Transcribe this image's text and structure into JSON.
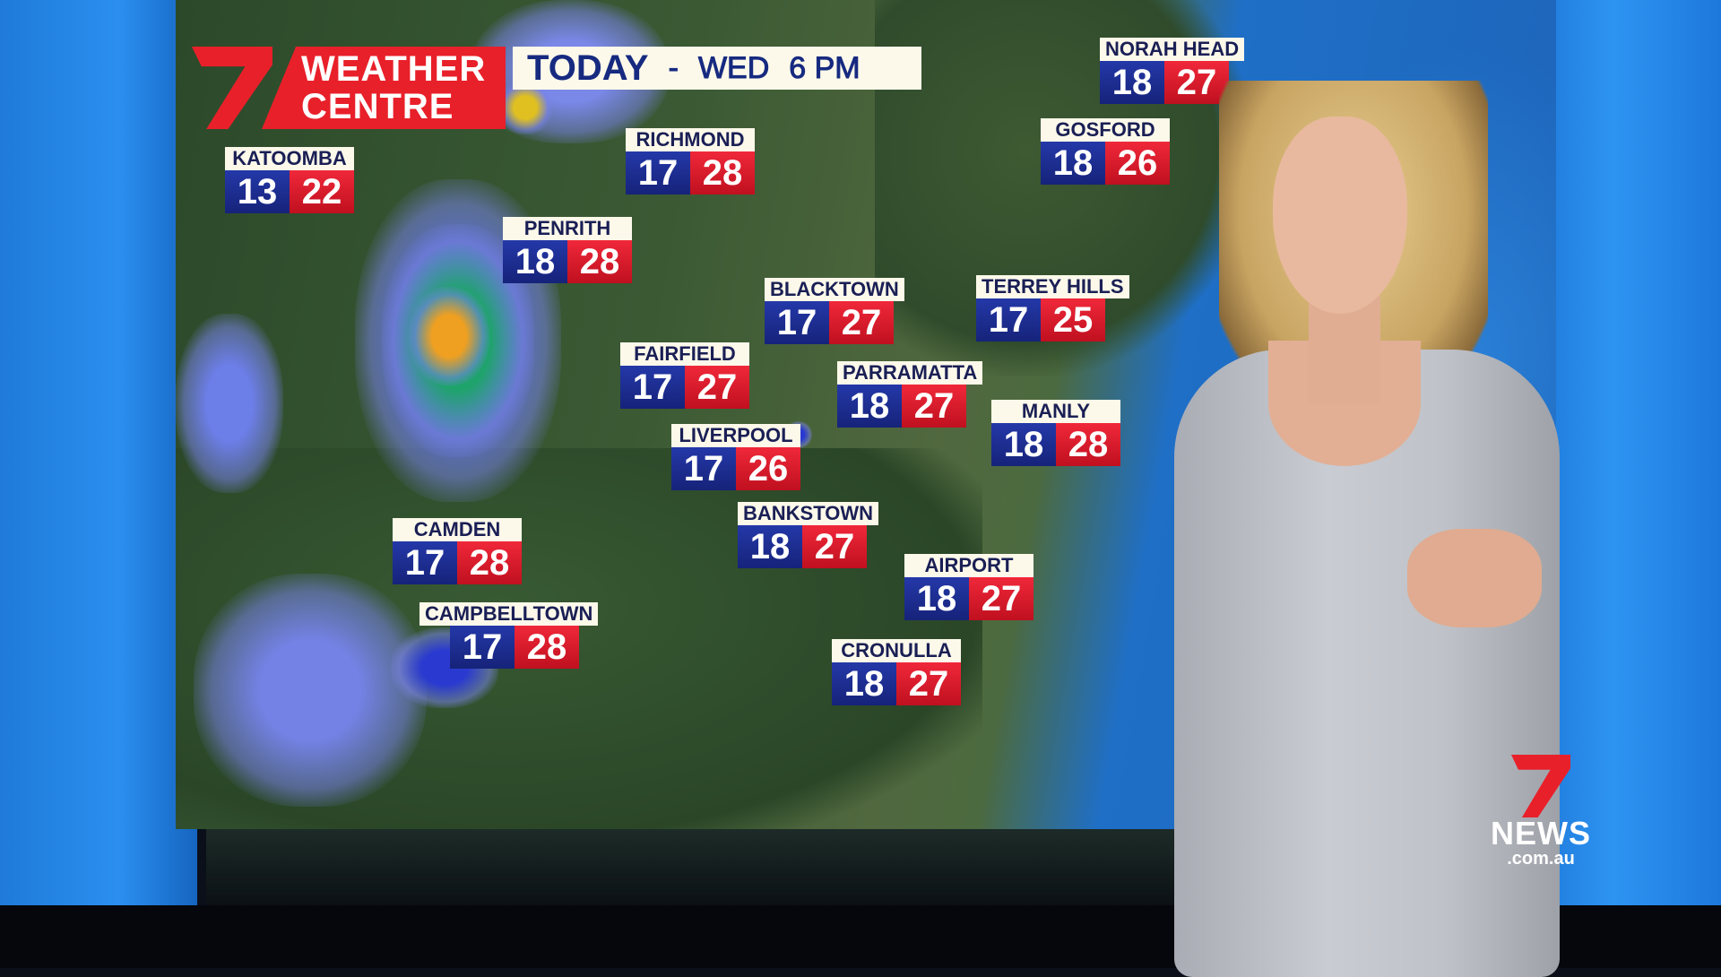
{
  "header": {
    "logo_line1": "WEATHER",
    "logo_line2": "CENTRE",
    "day": "TODAY",
    "separator": "-",
    "weekday": "WED",
    "time": "6 PM"
  },
  "cities": [
    {
      "name": "KATOOMBA",
      "min": "13",
      "max": "22"
    },
    {
      "name": "RICHMOND",
      "min": "17",
      "max": "28"
    },
    {
      "name": "PENRITH",
      "min": "18",
      "max": "28"
    },
    {
      "name": "BLACKTOWN",
      "min": "17",
      "max": "27"
    },
    {
      "name": "TERREY HILLS",
      "min": "17",
      "max": "25"
    },
    {
      "name": "FAIRFIELD",
      "min": "17",
      "max": "27"
    },
    {
      "name": "PARRAMATTA",
      "min": "18",
      "max": "27"
    },
    {
      "name": "MANLY",
      "min": "18",
      "max": "28"
    },
    {
      "name": "LIVERPOOL",
      "min": "17",
      "max": "26"
    },
    {
      "name": "BANKSTOWN",
      "min": "18",
      "max": "27"
    },
    {
      "name": "CAMDEN",
      "min": "17",
      "max": "28"
    },
    {
      "name": "CAMPBELLTOWN",
      "min": "17",
      "max": "28"
    },
    {
      "name": "AIRPORT",
      "min": "18",
      "max": "27"
    },
    {
      "name": "CRONULLA",
      "min": "18",
      "max": "27"
    },
    {
      "name": "GOSFORD",
      "min": "18",
      "max": "26"
    },
    {
      "name": "NORAH HEAD",
      "min": "18",
      "max": "27"
    }
  ],
  "colors": {
    "min_temp": "#1c2d94",
    "max_temp": "#e01e2e",
    "label_bg": "#fdf9ea",
    "brand_red": "#e8202a"
  },
  "watermark": {
    "brand": "7NEWS",
    "domain": ".com.au"
  }
}
